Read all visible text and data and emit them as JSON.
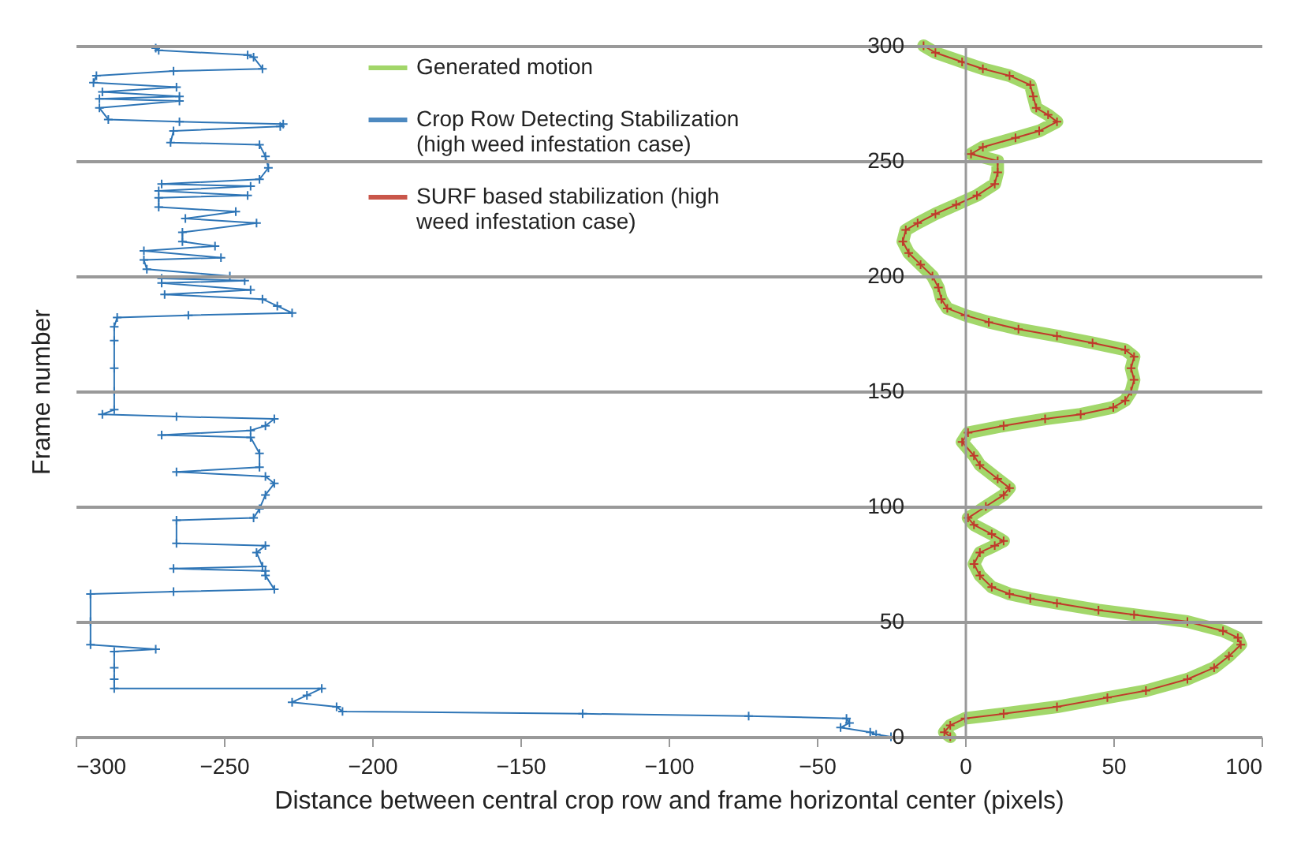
{
  "chart_data": {
    "type": "line",
    "xlabel": "Distance between central crop row and frame horizontal center (pixels)",
    "ylabel": "Frame number",
    "xlim": [
      -300,
      100
    ],
    "xticks": [
      -300,
      -250,
      -200,
      -150,
      -100,
      -50,
      0,
      50,
      100
    ],
    "ylim": [
      0,
      300
    ],
    "yticks": [
      0,
      50,
      100,
      150,
      200,
      250,
      300
    ],
    "grid": "y",
    "legend": "top",
    "series": [
      {
        "name": "Generated motion",
        "color": "#92d050",
        "marker": "none",
        "x": [
          -5,
          -7,
          -5,
          0,
          13,
          31,
          48,
          61,
          75,
          84,
          89,
          93,
          92,
          87,
          75,
          57,
          45,
          31,
          22,
          15,
          9,
          5,
          3,
          5,
          10,
          13,
          9,
          3,
          1,
          7,
          13,
          15,
          11,
          5,
          3,
          -1,
          1,
          13,
          27,
          39,
          50,
          54,
          56,
          57,
          56,
          57,
          54,
          43,
          31,
          18,
          8,
          0,
          -6,
          -8,
          -9,
          -11,
          -15,
          -19,
          -21,
          -20,
          -16,
          -10,
          -3,
          4,
          10,
          11,
          11,
          2,
          6,
          17,
          25,
          31,
          28,
          24,
          23,
          22,
          15,
          6,
          -1,
          -10,
          -14
        ],
        "values": [
          0,
          2,
          5,
          8,
          10,
          13,
          17,
          20,
          25,
          30,
          35,
          40,
          43,
          46,
          50,
          53,
          55,
          58,
          60,
          62,
          65,
          70,
          75,
          80,
          83,
          85,
          88,
          92,
          95,
          100,
          105,
          108,
          112,
          118,
          122,
          128,
          132,
          135,
          138,
          140,
          143,
          146,
          150,
          155,
          160,
          165,
          168,
          171,
          174,
          177,
          180,
          183,
          186,
          190,
          195,
          200,
          205,
          210,
          215,
          220,
          223,
          227,
          231,
          235,
          240,
          245,
          250,
          253,
          256,
          260,
          263,
          267,
          270,
          273,
          278,
          283,
          287,
          290,
          293,
          297,
          300
        ]
      },
      {
        "name": "Crop Row Detecting Stabilization (high weed infestation case)",
        "color": "#2e75b6",
        "marker": "cross",
        "x": [
          -25,
          -30,
          -32,
          -42,
          -39,
          -40,
          -73,
          -129,
          -210,
          -212,
          -227,
          -222,
          -217,
          -287,
          -287,
          -287,
          -287,
          -273,
          -295,
          -295,
          -295,
          -267,
          -233,
          -236,
          -236,
          -267,
          -237,
          -239,
          -236,
          -266,
          -266,
          -240,
          -238,
          -236,
          -233,
          -236,
          -266,
          -238,
          -238,
          -241,
          -271,
          -241,
          -236,
          -233,
          -266,
          -291,
          -287,
          -287,
          -287,
          -287,
          -287,
          -286,
          -262,
          -227,
          -232,
          -237,
          -270,
          -241,
          -271,
          -243,
          -271,
          -248,
          -276,
          -277,
          -251,
          -277,
          -253,
          -264,
          -264,
          -239,
          -263,
          -246,
          -272,
          -272,
          -242,
          -272,
          -241,
          -271,
          -238,
          -235,
          -236,
          -238,
          -268,
          -267,
          -231,
          -230,
          -265,
          -289,
          -292,
          -265,
          -292,
          -265,
          -291,
          -266,
          -294,
          -293,
          -267,
          -237,
          -240,
          -242,
          -272,
          -273
        ],
        "values": [
          0,
          1,
          2,
          4,
          6,
          8,
          9,
          10,
          11,
          13,
          15,
          18,
          21,
          21,
          25,
          30,
          37,
          38,
          40,
          50,
          62,
          63,
          64,
          70,
          72,
          73,
          74,
          80,
          83,
          84,
          94,
          95,
          99,
          105,
          110,
          113,
          115,
          117,
          123,
          130,
          131,
          133,
          135,
          138,
          139,
          140,
          142,
          150,
          160,
          172,
          178,
          182,
          183,
          184,
          187,
          190,
          192,
          194,
          197,
          198,
          199,
          200,
          203,
          207,
          208,
          211,
          213,
          215,
          219,
          223,
          225,
          228,
          230,
          234,
          235,
          237,
          239,
          240,
          242,
          247,
          252,
          257,
          258,
          263,
          265,
          266,
          267,
          268,
          273,
          276,
          277,
          278,
          280,
          282,
          284,
          287,
          289,
          290,
          295,
          296,
          298,
          299
        ]
      },
      {
        "name": "SURF based stabilization (high weed infestation case)",
        "color": "#c0392b",
        "marker": "cross",
        "x": [
          -5,
          -7,
          -5,
          0,
          13,
          31,
          48,
          61,
          75,
          84,
          89,
          93,
          92,
          87,
          75,
          57,
          45,
          31,
          22,
          15,
          9,
          5,
          3,
          5,
          10,
          13,
          9,
          3,
          1,
          7,
          13,
          15,
          11,
          5,
          3,
          -1,
          1,
          13,
          27,
          39,
          50,
          54,
          56,
          57,
          56,
          57,
          54,
          43,
          31,
          18,
          8,
          0,
          -6,
          -8,
          -9,
          -11,
          -15,
          -19,
          -21,
          -20,
          -16,
          -10,
          -3,
          4,
          10,
          11,
          11,
          2,
          6,
          17,
          25,
          31,
          28,
          24,
          23,
          22,
          15,
          6,
          -1,
          -10,
          -14
        ],
        "values": [
          0,
          2,
          5,
          8,
          10,
          13,
          17,
          20,
          25,
          30,
          35,
          40,
          43,
          46,
          50,
          53,
          55,
          58,
          60,
          62,
          65,
          70,
          75,
          80,
          83,
          85,
          88,
          92,
          95,
          100,
          105,
          108,
          112,
          118,
          122,
          128,
          132,
          135,
          138,
          140,
          143,
          146,
          150,
          155,
          160,
          165,
          168,
          171,
          174,
          177,
          180,
          183,
          186,
          190,
          195,
          200,
          205,
          210,
          215,
          220,
          223,
          227,
          231,
          235,
          240,
          245,
          250,
          253,
          256,
          260,
          263,
          267,
          270,
          273,
          278,
          283,
          287,
          290,
          293,
          297,
          300
        ]
      }
    ]
  }
}
